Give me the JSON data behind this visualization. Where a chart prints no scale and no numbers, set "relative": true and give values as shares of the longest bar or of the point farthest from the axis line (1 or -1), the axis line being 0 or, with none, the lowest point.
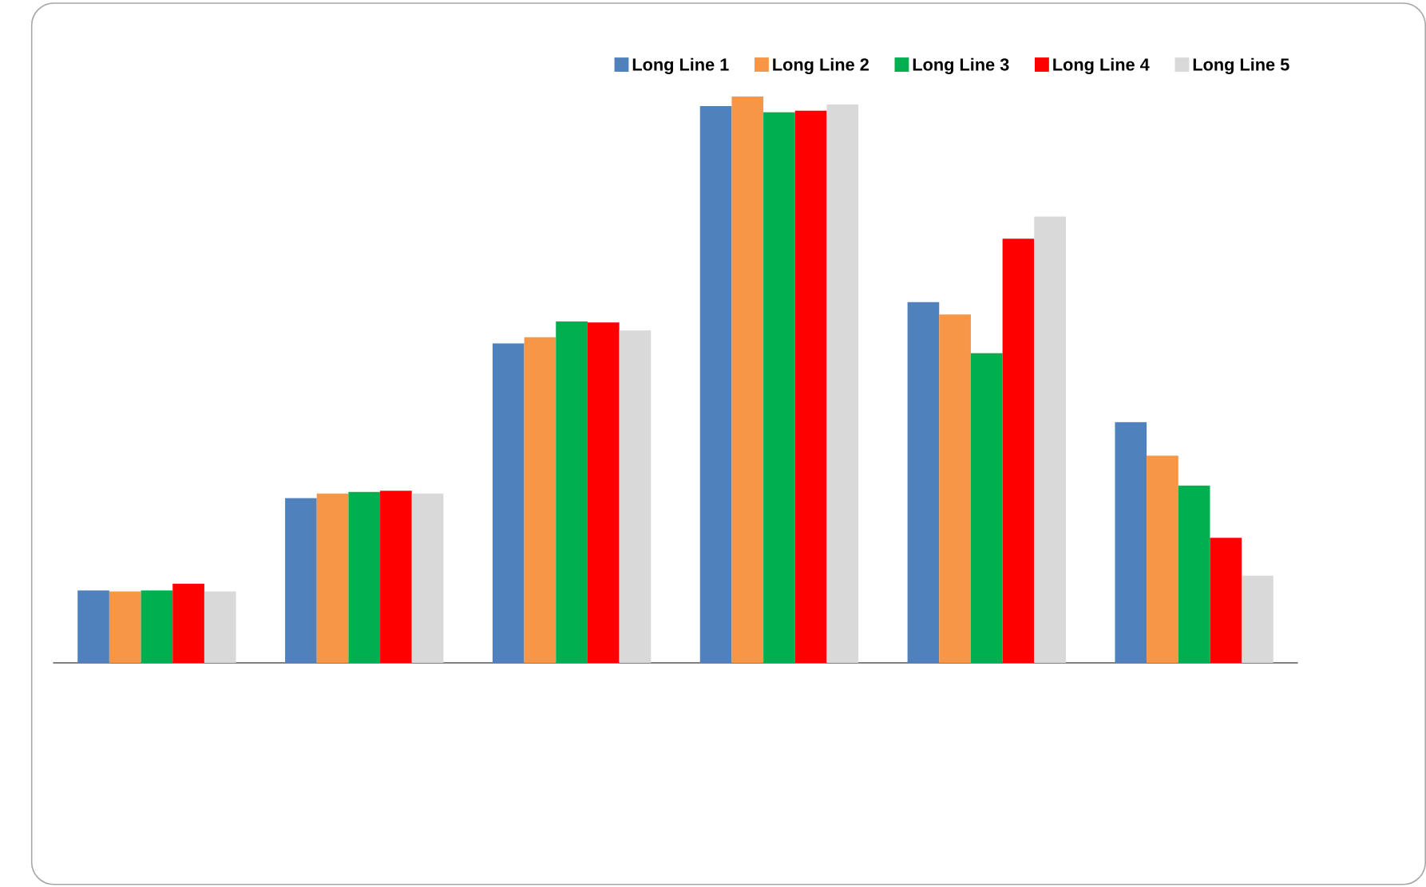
{
  "chart_data": {
    "type": "bar",
    "relative": true,
    "legend": "top right",
    "categories": [
      null,
      null,
      null,
      null,
      null,
      null
    ],
    "series": [
      {
        "name": "Long Line 1",
        "color": "#4f81bd",
        "values": [
          0.128,
          0.291,
          0.564,
          0.983,
          0.637,
          0.425
        ]
      },
      {
        "name": "Long Line 2",
        "color": "#f79646",
        "values": [
          0.126,
          0.299,
          0.575,
          1,
          0.615,
          0.366
        ]
      },
      {
        "name": "Long Line 3",
        "color": "#00b050",
        "values": [
          0.128,
          0.302,
          0.603,
          0.972,
          0.547,
          0.313
        ]
      },
      {
        "name": "Long Line 4",
        "color": "#ff0000",
        "values": [
          0.14,
          0.304,
          0.601,
          0.975,
          0.749,
          0.221
        ]
      },
      {
        "name": "Long Line 5",
        "color": "#d9d9d9",
        "values": [
          0.126,
          0.299,
          0.587,
          0.986,
          0.788,
          0.154
        ]
      }
    ]
  }
}
